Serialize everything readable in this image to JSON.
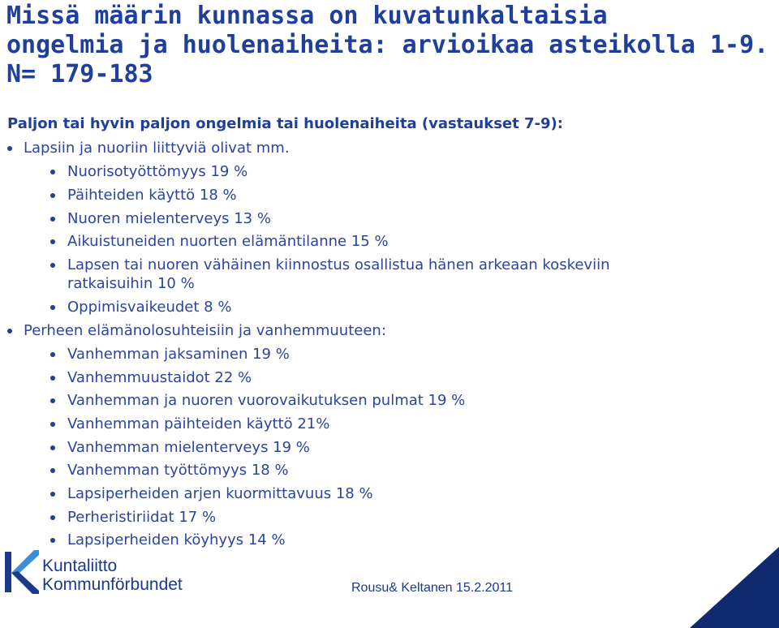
{
  "slide": {
    "title_lines": [
      "Missä määrin kunnassa on kuvatunkaltaisia",
      "ongelmia ja huolenaiheita: arvioikaa asteikolla 1-9.",
      "N= 179-183"
    ],
    "subheading": "Paljon tai hyvin paljon ongelmia tai huolenaiheita (vastaukset 7-9):",
    "sections": [
      {
        "label": "Lapsiin ja nuoriin liittyviä olivat mm.",
        "items": [
          "Nuorisotyöttömyys 19 %",
          "Päihteiden käyttö 18 %",
          "Nuoren mielenterveys 13 %",
          "Aikuistuneiden nuorten elämäntilanne 15 %",
          "Lapsen tai nuoren vähäinen kiinnostus osallistua hänen arkeaan koskeviin",
          "ratkaisuihin 10 %",
          "Oppimisvaikeudet 8 %"
        ]
      },
      {
        "label": "Perheen elämänolosuhteisiin ja vanhemmuuteen:",
        "items": [
          "Vanhemman jaksaminen 19 %",
          "Vanhemmuustaidot 22 %",
          "Vanhemman ja nuoren vuorovaikutuksen pulmat 19 %",
          "Vanhemman päihteiden käyttö 21%",
          "Vanhemman mielenterveys 19 %",
          "Vanhemman työttömyys 18 %",
          "Lapsiperheiden arjen kuormittavuus 18 %",
          "Perheristiriidat 17 %",
          "Lapsiperheiden köyhyys 14 %"
        ]
      }
    ]
  },
  "footer": {
    "logo_line1": "Kuntaliitto",
    "logo_line2": "Kommunförbundet",
    "note": "Rousu& Keltanen 15.2.2011"
  },
  "colors": {
    "title": "#1f3f9a",
    "body_text": "#2b44a0",
    "logo_blue": "#1b3a8c",
    "logo_light": "#3a8fd6",
    "corner_navy": "#0f2a6e"
  }
}
